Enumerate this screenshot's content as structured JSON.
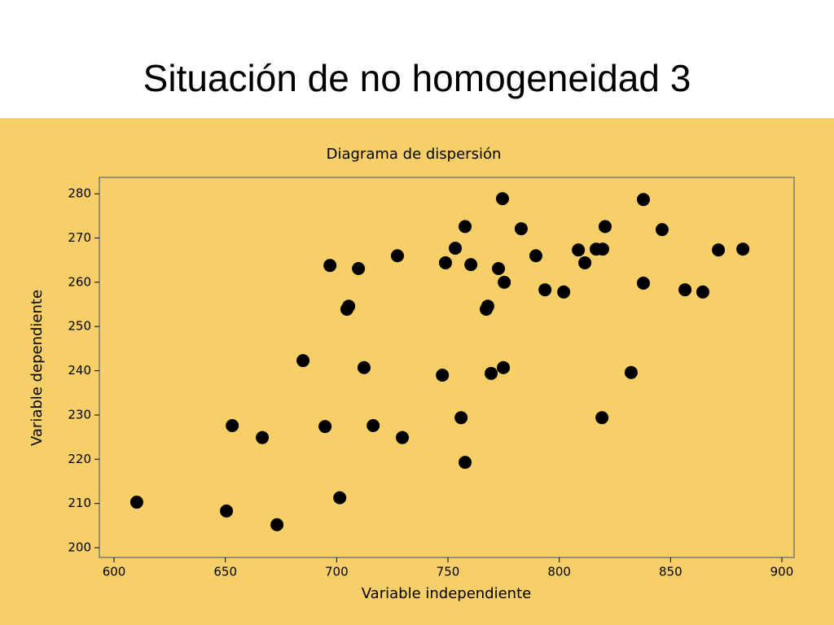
{
  "slide_title": "Situación de no homogeneidad 3",
  "chart_data": {
    "type": "scatter",
    "title": "Diagrama de dispersión",
    "x_label": "Variable independiente",
    "y_label": "Variable dependiente",
    "color": "#000000",
    "grid": false,
    "xlim": [
      593.4,
      905.5
    ],
    "ylim": [
      197.8,
      283.7
    ],
    "xticks": [
      600,
      650,
      700,
      750,
      800,
      850,
      900
    ],
    "yticks": [
      200,
      210,
      220,
      230,
      240,
      250,
      260,
      270,
      280
    ],
    "x": [
      610.2,
      650.5,
      653.1,
      666.6,
      673.2,
      684.9,
      694.8,
      697.0,
      701.4,
      704.6,
      705.4,
      709.8,
      712.3,
      716.4,
      727.3,
      729.5,
      747.5,
      748.9,
      753.3,
      755.9,
      757.7,
      757.7,
      760.3,
      767.2,
      767.9,
      769.4,
      772.7,
      774.5,
      774.9,
      775.3,
      782.9,
      789.5,
      793.6,
      802.0,
      808.6,
      811.5,
      816.6,
      819.5,
      819.2,
      820.6,
      832.3,
      837.8,
      837.8,
      846.2,
      856.5,
      864.5,
      871.5,
      882.5
    ],
    "values": [
      210.3,
      208.3,
      227.6,
      224.9,
      205.2,
      242.3,
      227.4,
      263.8,
      211.3,
      253.9,
      254.6,
      263.1,
      240.7,
      227.6,
      266.0,
      224.9,
      239.0,
      264.4,
      267.7,
      229.4,
      272.6,
      219.3,
      264.0,
      253.9,
      254.6,
      239.4,
      263.1,
      278.9,
      240.7,
      260.0,
      272.1,
      266.0,
      258.3,
      257.8,
      267.3,
      264.4,
      267.5,
      267.5,
      229.4,
      272.6,
      239.6,
      278.7,
      259.8,
      271.9,
      258.3,
      257.8,
      267.3,
      267.5
    ]
  }
}
